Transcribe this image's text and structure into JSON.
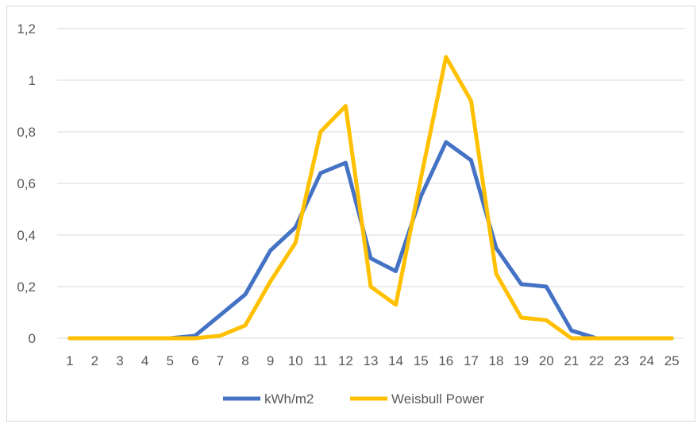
{
  "chart_data": {
    "type": "line",
    "title": "",
    "xlabel": "",
    "ylabel": "",
    "x": [
      "1",
      "2",
      "3",
      "4",
      "5",
      "6",
      "7",
      "8",
      "9",
      "10",
      "11",
      "12",
      "13",
      "14",
      "15",
      "16",
      "17",
      "18",
      "19",
      "20",
      "21",
      "22",
      "23",
      "24",
      "25"
    ],
    "ylim": [
      0,
      1.2
    ],
    "y_ticks": [
      "0",
      "0,2",
      "0,4",
      "0,6",
      "0,8",
      "1",
      "1,2"
    ],
    "y_tick_values": [
      0,
      0.2,
      0.4,
      0.6,
      0.8,
      1.0,
      1.2
    ],
    "grid": "horizontal",
    "legend_position": "bottom",
    "series": [
      {
        "name": "kWh/m2",
        "color": "#4472C4",
        "values": [
          0,
          0,
          0,
          0,
          0,
          0.01,
          0.09,
          0.17,
          0.34,
          0.43,
          0.64,
          0.68,
          0.31,
          0.26,
          0.55,
          0.76,
          0.69,
          0.35,
          0.21,
          0.2,
          0.03,
          0,
          0,
          0,
          0
        ]
      },
      {
        "name": "Weisbull Power",
        "color": "#FFC000",
        "values": [
          0,
          0,
          0,
          0,
          0,
          0,
          0.01,
          0.05,
          0.22,
          0.37,
          0.8,
          0.9,
          0.2,
          0.13,
          0.62,
          1.09,
          0.92,
          0.25,
          0.08,
          0.07,
          0,
          0,
          0,
          0,
          0
        ]
      }
    ]
  }
}
